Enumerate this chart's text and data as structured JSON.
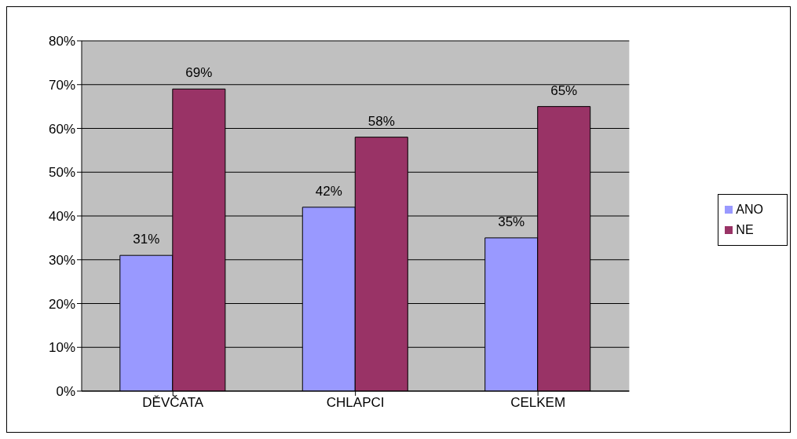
{
  "chart_data": {
    "type": "bar",
    "categories": [
      "DĚVČATA",
      "CHLAPCI",
      "CELKEM"
    ],
    "series": [
      {
        "name": "ANO",
        "color": "#9999ff",
        "values": [
          31,
          42,
          35
        ],
        "value_labels": [
          "31%",
          "42%",
          "35%"
        ]
      },
      {
        "name": "NE",
        "color": "#993366",
        "values": [
          69,
          58,
          65
        ],
        "value_labels": [
          "69%",
          "58%",
          "65%"
        ]
      }
    ],
    "ylim": [
      0,
      80
    ],
    "yticks": [
      {
        "value": 0,
        "label": "0%"
      },
      {
        "value": 10,
        "label": "10%"
      },
      {
        "value": 20,
        "label": "20%"
      },
      {
        "value": 30,
        "label": "30%"
      },
      {
        "value": 40,
        "label": "40%"
      },
      {
        "value": 50,
        "label": "50%"
      },
      {
        "value": 60,
        "label": "60%"
      },
      {
        "value": 70,
        "label": "70%"
      },
      {
        "value": 80,
        "label": "80%"
      }
    ],
    "grid": "y",
    "legend": "right"
  }
}
